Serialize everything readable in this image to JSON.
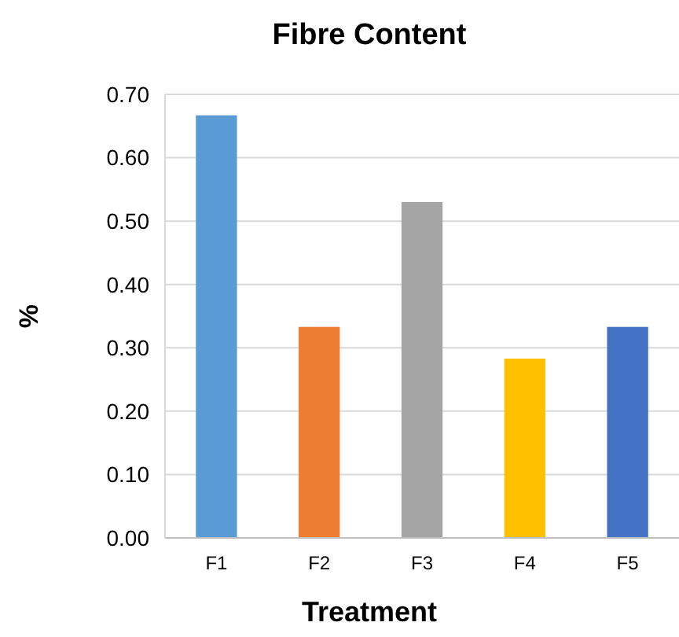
{
  "chart_data": {
    "type": "bar",
    "title": "Fibre Content",
    "xlabel": "Treatment",
    "ylabel": "%",
    "categories": [
      "F1",
      "F2",
      "F3",
      "F4",
      "F5"
    ],
    "values": [
      0.667,
      0.333,
      0.53,
      0.283,
      0.333
    ],
    "colors": [
      "#5b9bd5",
      "#ed7d31",
      "#a5a5a5",
      "#ffc000",
      "#4472c4"
    ],
    "ylim": [
      0,
      0.7
    ],
    "yticks": [
      {
        "value": 0,
        "label": "0.00"
      },
      {
        "value": 0.1,
        "label": "0.10"
      },
      {
        "value": 0.2,
        "label": "0.20"
      },
      {
        "value": 0.3,
        "label": "0.30"
      },
      {
        "value": 0.4,
        "label": "0.40"
      },
      {
        "value": 0.5,
        "label": "0.50"
      },
      {
        "value": 0.6,
        "label": "0.60"
      },
      {
        "value": 0.7,
        "label": "0.70"
      }
    ],
    "grid": "y"
  }
}
